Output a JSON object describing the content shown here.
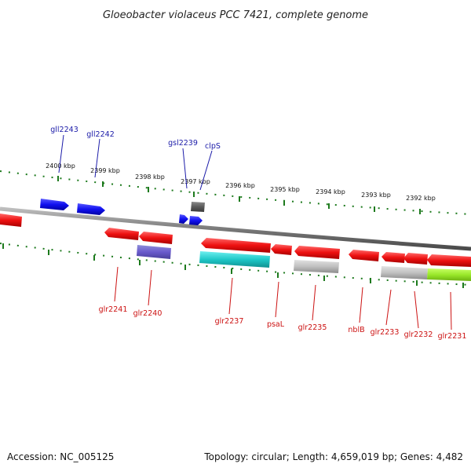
{
  "title": "Gloeobacter violaceus PCC 7421, complete genome",
  "footer": {
    "accession": "Accession: NC_005125",
    "summary": "Topology: circular; Length: 4,659,019 bp; Genes: 4,482"
  },
  "colors": {
    "forward_gene": "#1010f0",
    "reverse_gene": "#ee1111",
    "forward_label": "#1a1aa8",
    "reverse_label": "#cc1111",
    "scale_tick": "#1d7a1d",
    "backbone": "#8a8a8a"
  },
  "scale_labels": [
    "2400 kbp",
    "2399 kbp",
    "2398 kbp",
    "2397 kbp",
    "2396 kbp",
    "2395 kbp",
    "2394 kbp",
    "2393 kbp",
    "2392 kbp"
  ],
  "forward_genes": [
    "gll2243",
    "gll2242",
    "gsl2239",
    "clpS"
  ],
  "reverse_genes": [
    "glr2241",
    "glr2240",
    "glr2237",
    "psaL",
    "glr2235",
    "nblB",
    "glr2233",
    "glr2232",
    "glr2231"
  ]
}
